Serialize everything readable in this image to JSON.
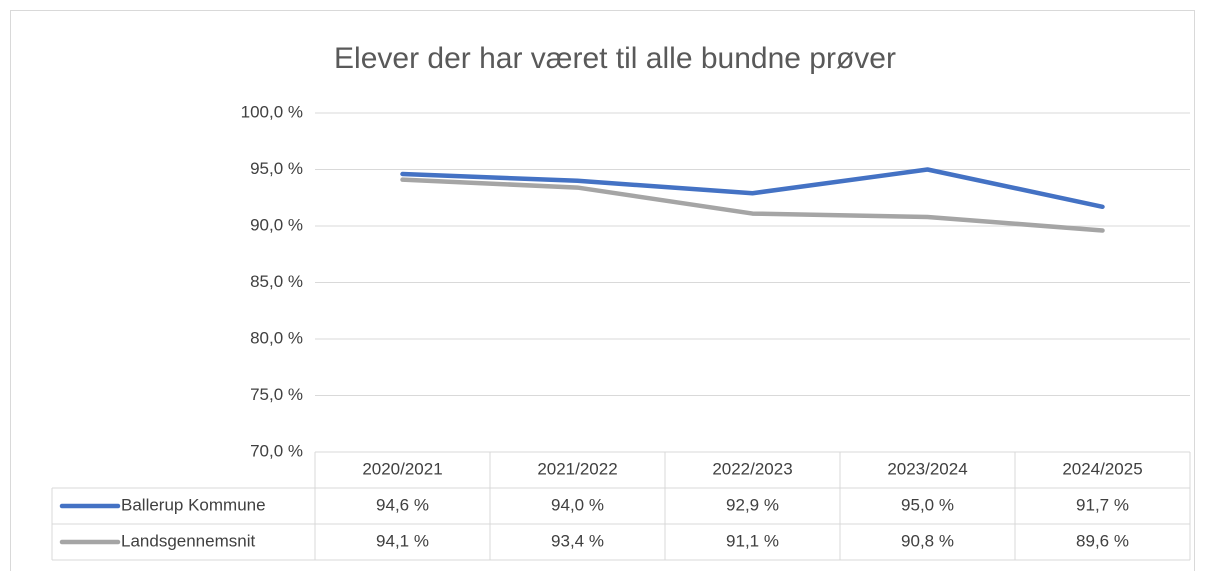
{
  "chart_data": {
    "type": "line",
    "title": "Elever der har været til alle bundne prøver",
    "categories": [
      "2020/2021",
      "2021/2022",
      "2022/2023",
      "2023/2024",
      "2024/2025"
    ],
    "series": [
      {
        "name": "Ballerup Kommune",
        "color": "#4472c4",
        "values": [
          94.6,
          94.0,
          92.9,
          95.0,
          91.7
        ],
        "value_labels": [
          "94,6 %",
          "94,0 %",
          "92,9 %",
          "95,0 %",
          "91,7 %"
        ]
      },
      {
        "name": "Landsgennemsnit",
        "color": "#a5a5a5",
        "values": [
          94.1,
          93.4,
          91.1,
          90.8,
          89.6
        ],
        "value_labels": [
          "94,1 %",
          "93,4 %",
          "91,1 %",
          "90,8 %",
          "89,6 %"
        ]
      }
    ],
    "ylim": [
      70,
      100
    ],
    "yticks": [
      {
        "value": 70,
        "label": "70,0 %"
      },
      {
        "value": 75,
        "label": "75,0 %"
      },
      {
        "value": 80,
        "label": "80,0 %"
      },
      {
        "value": 85,
        "label": "85,0 %"
      },
      {
        "value": 90,
        "label": "90,0 %"
      },
      {
        "value": 95,
        "label": "95,0 %"
      },
      {
        "value": 100,
        "label": "100,0 %"
      }
    ],
    "grid": true,
    "legend": "table"
  }
}
